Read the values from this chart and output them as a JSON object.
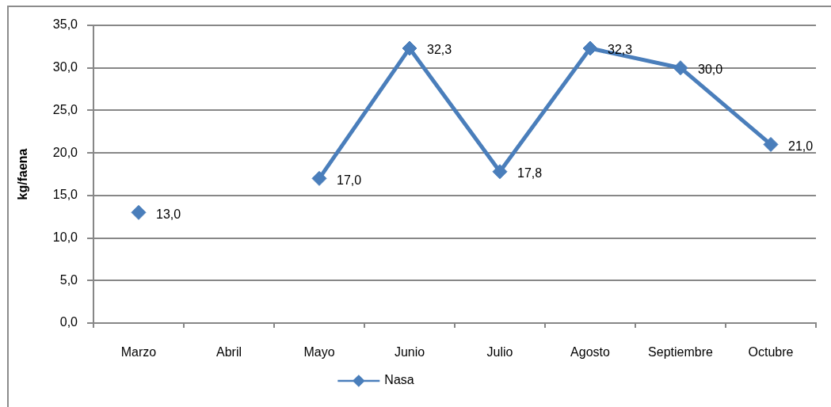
{
  "chart_data": {
    "type": "line",
    "ylabel": "kg/faena",
    "categories": [
      "Marzo",
      "Abril",
      "Mayo",
      "Junio",
      "Julio",
      "Agosto",
      "Septiembre",
      "Octubre"
    ],
    "series": [
      {
        "name": "Nasa",
        "color": "#4a7ebb",
        "values": [
          13.0,
          null,
          17.0,
          32.3,
          17.8,
          32.3,
          30.0,
          21.0
        ],
        "value_labels": [
          "13,0",
          null,
          "17,0",
          "32,3",
          "17,8",
          "32,3",
          "30,0",
          "21,0"
        ]
      }
    ],
    "ylim": [
      0,
      35
    ],
    "yticks": [
      {
        "value": 0,
        "label": "0,0"
      },
      {
        "value": 5,
        "label": "5,0"
      },
      {
        "value": 10,
        "label": "10,0"
      },
      {
        "value": 15,
        "label": "15,0"
      },
      {
        "value": 20,
        "label": "20,0"
      },
      {
        "value": 25,
        "label": "25,0"
      },
      {
        "value": 30,
        "label": "30,0"
      },
      {
        "value": 35,
        "label": "35,0"
      }
    ],
    "grid": "y",
    "legend": "bottom",
    "marker": "diamond",
    "line_style": "solid"
  }
}
